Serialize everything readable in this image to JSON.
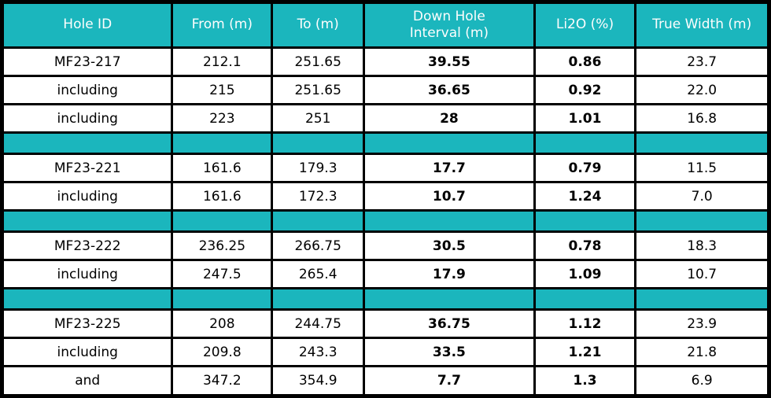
{
  "colors": {
    "header_bg": "#1bb6bd",
    "header_text": "#fdfdfd",
    "separator_bg": "#1bb6bd",
    "border": "#000000",
    "cell_bg": "#ffffff",
    "cell_text": "#000000"
  },
  "table": {
    "columns": [
      "Hole ID",
      "From (m)",
      "To (m)",
      "Down Hole\nInterval (m)",
      "Li2O (%)",
      "True Width (m)"
    ],
    "rows": [
      {
        "type": "data",
        "cells": [
          "MF23-217",
          "212.1",
          "251.65",
          "39.55",
          "0.86",
          "23.7"
        ]
      },
      {
        "type": "data",
        "cells": [
          "including",
          "215",
          "251.65",
          "36.65",
          "0.92",
          "22.0"
        ]
      },
      {
        "type": "data",
        "cells": [
          "including",
          "223",
          "251",
          "28",
          "1.01",
          "16.8"
        ]
      },
      {
        "type": "separator",
        "cells": [
          "",
          "",
          "",
          "",
          "",
          ""
        ]
      },
      {
        "type": "data",
        "cells": [
          "MF23-221",
          "161.6",
          "179.3",
          "17.7",
          "0.79",
          "11.5"
        ]
      },
      {
        "type": "data",
        "cells": [
          "including",
          "161.6",
          "172.3",
          "10.7",
          "1.24",
          "7.0"
        ]
      },
      {
        "type": "separator",
        "cells": [
          "",
          "",
          "",
          "",
          "",
          ""
        ]
      },
      {
        "type": "data",
        "cells": [
          "MF23-222",
          "236.25",
          "266.75",
          "30.5",
          "0.78",
          "18.3"
        ]
      },
      {
        "type": "data",
        "cells": [
          "including",
          "247.5",
          "265.4",
          "17.9",
          "1.09",
          "10.7"
        ]
      },
      {
        "type": "separator",
        "cells": [
          "",
          "",
          "",
          "",
          "",
          ""
        ]
      },
      {
        "type": "data",
        "cells": [
          "MF23-225",
          "208",
          "244.75",
          "36.75",
          "1.12",
          "23.9"
        ]
      },
      {
        "type": "data",
        "cells": [
          "including",
          "209.8",
          "243.3",
          "33.5",
          "1.21",
          "21.8"
        ]
      },
      {
        "type": "data",
        "cells": [
          "and",
          "347.2",
          "354.9",
          "7.7",
          "1.3",
          "6.9"
        ]
      }
    ]
  },
  "chart_data": {
    "type": "table",
    "columns": [
      "Hole ID",
      "From (m)",
      "To (m)",
      "Down Hole Interval (m)",
      "Li2O (%)",
      "True Width (m)"
    ],
    "rows": [
      [
        "MF23-217",
        212.1,
        251.65,
        39.55,
        0.86,
        23.7
      ],
      [
        "including",
        215,
        251.65,
        36.65,
        0.92,
        22.0
      ],
      [
        "including",
        223,
        251,
        28,
        1.01,
        16.8
      ],
      [
        "MF23-221",
        161.6,
        179.3,
        17.7,
        0.79,
        11.5
      ],
      [
        "including",
        161.6,
        172.3,
        10.7,
        1.24,
        7.0
      ],
      [
        "MF23-222",
        236.25,
        266.75,
        30.5,
        0.78,
        18.3
      ],
      [
        "including",
        247.5,
        265.4,
        17.9,
        1.09,
        10.7
      ],
      [
        "MF23-225",
        208,
        244.75,
        36.75,
        1.12,
        23.9
      ],
      [
        "including",
        209.8,
        243.3,
        33.5,
        1.21,
        21.8
      ],
      [
        "and",
        347.2,
        354.9,
        7.7,
        1.3,
        6.9
      ]
    ],
    "bold_columns": [
      "Down Hole Interval (m)",
      "Li2O (%)"
    ],
    "group_separators_after_row_index": [
      2,
      4,
      6
    ]
  }
}
